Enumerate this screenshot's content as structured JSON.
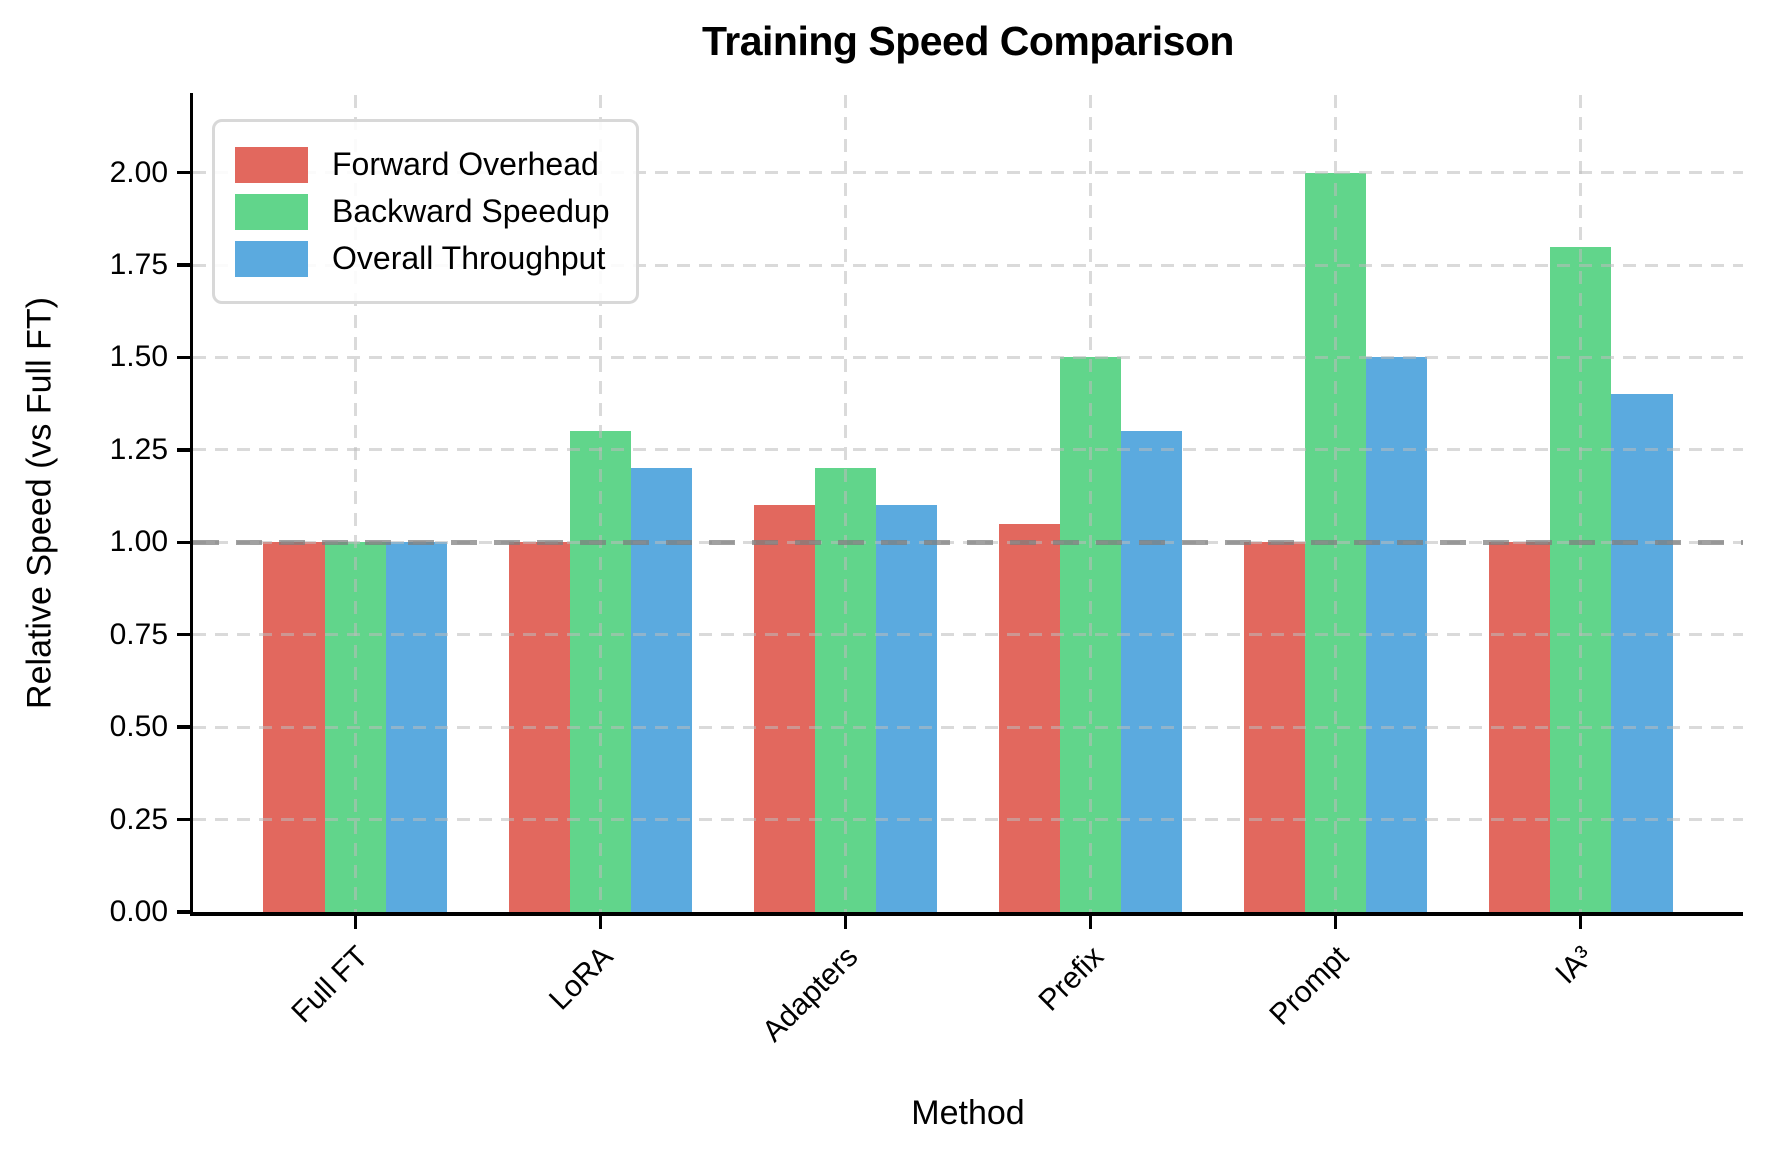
{
  "chart_data": {
    "type": "bar",
    "title": "Training Speed Comparison",
    "xlabel": "Method",
    "ylabel": "Relative Speed (vs Full FT)",
    "categories": [
      "Full FT",
      "LoRA",
      "Adapters",
      "Prefix",
      "Prompt",
      "IA³"
    ],
    "series": [
      {
        "name": "Forward Overhead",
        "color": "#E2685E",
        "values": [
          1.0,
          1.0,
          1.1,
          1.05,
          1.0,
          1.0
        ]
      },
      {
        "name": "Backward Speedup",
        "color": "#61D58B",
        "values": [
          1.0,
          1.3,
          1.2,
          1.5,
          2.0,
          1.8
        ]
      },
      {
        "name": "Overall Throughput",
        "color": "#5BAADF",
        "values": [
          1.0,
          1.2,
          1.1,
          1.3,
          1.5,
          1.4
        ]
      }
    ],
    "ylim": [
      0,
      2.21
    ],
    "yticks": [
      0.0,
      0.25,
      0.5,
      0.75,
      1.0,
      1.25,
      1.5,
      1.75,
      2.0
    ],
    "ytick_labels": [
      "0.00",
      "0.25",
      "0.50",
      "0.75",
      "1.00",
      "1.25",
      "1.50",
      "1.75",
      "2.00"
    ],
    "reference_line": {
      "value": 1.0,
      "color": "#A0A0A0",
      "style": "dashed"
    },
    "grid": true,
    "grid_color": "#DCDCDC",
    "legend_position": "upper left",
    "bar_width_fraction": 0.25
  }
}
